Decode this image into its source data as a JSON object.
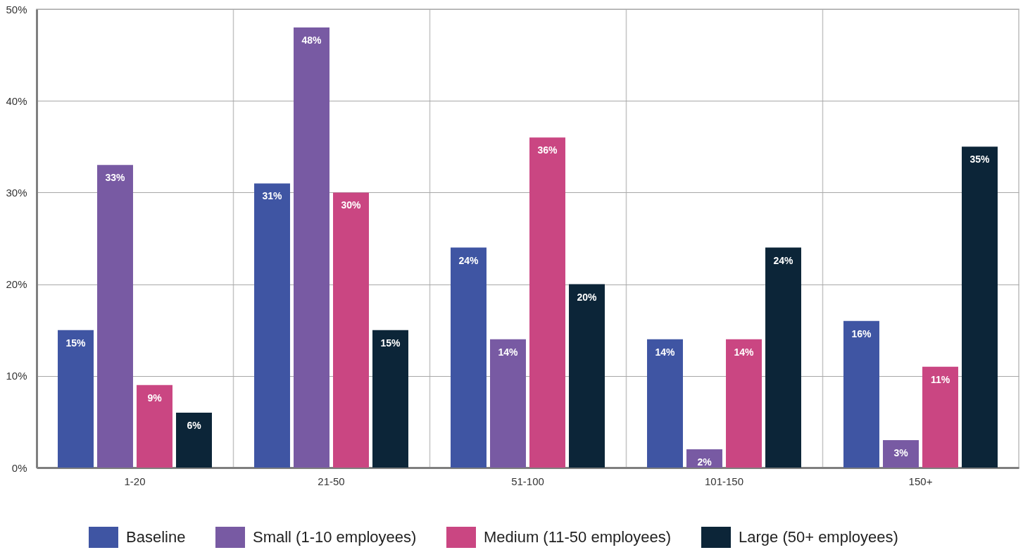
{
  "chart_data": {
    "type": "bar",
    "categories": [
      "1-20",
      "21-50",
      "51-100",
      "101-150",
      "150+"
    ],
    "series": [
      {
        "name": "Baseline",
        "color": "#3f55a3",
        "values": [
          15,
          31,
          24,
          14,
          16
        ],
        "value_labels": [
          "15%",
          "31%",
          "24%",
          "14%",
          "16%"
        ]
      },
      {
        "name": "Small (1-10 employees)",
        "color": "#785aa3",
        "values": [
          33,
          48,
          14,
          2,
          3
        ],
        "value_labels": [
          "33%",
          "48%",
          "14%",
          "2%",
          "3%"
        ]
      },
      {
        "name": "Medium (11-50 employees)",
        "color": "#ca4682",
        "values": [
          9,
          30,
          36,
          14,
          11
        ],
        "value_labels": [
          "9%",
          "30%",
          "36%",
          "14%",
          "11%"
        ]
      },
      {
        "name": "Large (50+ employees)",
        "color": "#0c2538",
        "values": [
          6,
          15,
          20,
          24,
          35
        ],
        "value_labels": [
          "6%",
          "15%",
          "20%",
          "24%",
          "35%"
        ]
      }
    ],
    "ylim": [
      0,
      50
    ],
    "yticks": [
      {
        "value": 0,
        "label": "0%"
      },
      {
        "value": 10,
        "label": "10%"
      },
      {
        "value": 20,
        "label": "20%"
      },
      {
        "value": 30,
        "label": "30%"
      },
      {
        "value": 40,
        "label": "40%"
      },
      {
        "value": 50,
        "label": "50%"
      }
    ],
    "grid": true,
    "legend": "bottom"
  }
}
